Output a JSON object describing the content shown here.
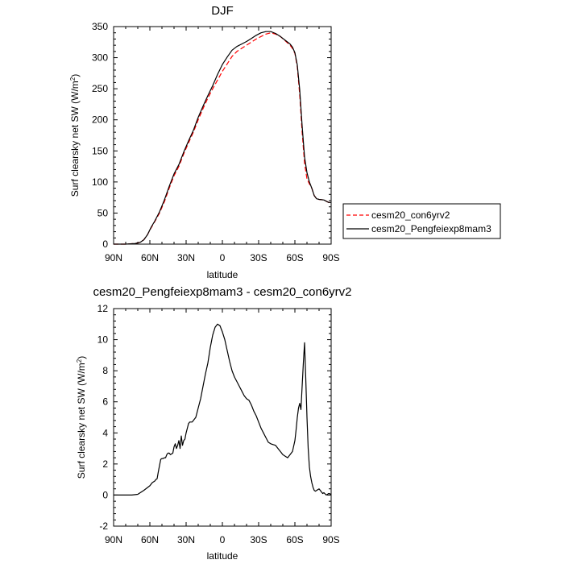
{
  "chart_data": [
    {
      "type": "line",
      "title": "DJF",
      "xlabel": "latitude",
      "ylabel": "Surf clearsky net SW (W/m",
      "ylabel_sup": "2",
      "ylabel_close": ")",
      "xlim": [
        -90,
        90
      ],
      "ylim": [
        0,
        350
      ],
      "xticks": [
        -90,
        -60,
        -30,
        0,
        30,
        60,
        90
      ],
      "xtick_labels": [
        "90N",
        "60N",
        "30N",
        "0",
        "30S",
        "60S",
        "90S"
      ],
      "yticks": [
        0,
        50,
        100,
        150,
        200,
        250,
        300,
        350
      ],
      "ytick_labels": [
        "0",
        "50",
        "100",
        "150",
        "200",
        "250",
        "300",
        "350"
      ],
      "grid": false,
      "legend": "right",
      "series": [
        {
          "name": "cesm20_con6yrv2",
          "color": "#ff0000",
          "dash": true,
          "x": [
            -90,
            -80,
            -72,
            -68,
            -65,
            -62,
            -59,
            -56,
            -52,
            -48,
            -44,
            -40,
            -36,
            -32,
            -28,
            -24,
            -20,
            -16,
            -12,
            -8,
            -4,
            0,
            4,
            8,
            12,
            16,
            20,
            24,
            28,
            32,
            36,
            40,
            44,
            48,
            52,
            56,
            58,
            60,
            62,
            64,
            66,
            68,
            70,
            72,
            74,
            76,
            78,
            80,
            84,
            88,
            90
          ],
          "y": [
            0,
            0,
            1,
            3,
            7,
            15,
            26,
            36,
            50,
            68,
            90,
            110,
            125,
            145,
            163,
            180,
            200,
            218,
            235,
            250,
            264,
            278,
            290,
            302,
            310,
            315,
            320,
            325,
            330,
            334,
            338,
            340,
            338,
            334,
            327,
            320,
            315,
            307,
            285,
            240,
            180,
            130,
            105,
            97,
            90,
            78,
            73,
            72,
            71,
            67,
            67
          ]
        },
        {
          "name": "cesm20_Pengfeiexp8mam3",
          "color": "#000000",
          "dash": false,
          "x": [
            -90,
            -80,
            -72,
            -68,
            -65,
            -62,
            -59,
            -56,
            -52,
            -48,
            -44,
            -40,
            -36,
            -32,
            -28,
            -24,
            -20,
            -16,
            -12,
            -8,
            -4,
            0,
            4,
            8,
            12,
            16,
            20,
            24,
            28,
            32,
            36,
            40,
            44,
            48,
            52,
            56,
            58,
            60,
            62,
            64,
            66,
            68,
            70,
            72,
            74,
            76,
            78,
            80,
            84,
            88,
            90
          ],
          "y": [
            0,
            0,
            1,
            3,
            7,
            15,
            27,
            37,
            52,
            71,
            93,
            113,
            128,
            148,
            166,
            183,
            204,
            222,
            239,
            255,
            273,
            289,
            301,
            312,
            318,
            322,
            326,
            331,
            336,
            340,
            342,
            342,
            339,
            334,
            328,
            322,
            317,
            308,
            288,
            248,
            190,
            140,
            115,
            100,
            90,
            78,
            73,
            72,
            71,
            67,
            67
          ]
        }
      ]
    },
    {
      "type": "line",
      "title": "cesm20_Pengfeiexp8mam3 - cesm20_con6yrv2",
      "xlabel": "latitude",
      "ylabel": "Surf clearsky net SW (W/m",
      "ylabel_sup": "2",
      "ylabel_close": ")",
      "xlim": [
        -90,
        90
      ],
      "ylim": [
        -2,
        12
      ],
      "xticks": [
        -90,
        -60,
        -30,
        0,
        30,
        60,
        90
      ],
      "xtick_labels": [
        "90N",
        "60N",
        "30N",
        "0",
        "30S",
        "60S",
        "90S"
      ],
      "yticks": [
        -2,
        0,
        2,
        4,
        6,
        8,
        10,
        12
      ],
      "ytick_labels": [
        "-2",
        "0",
        "2",
        "4",
        "6",
        "8",
        "10",
        "12"
      ],
      "grid": false,
      "series": [
        {
          "color": "#000000",
          "dash": false,
          "x": [
            -90,
            -75,
            -70,
            -65,
            -60,
            -58,
            -56,
            -55,
            -54,
            -53,
            -52,
            -51,
            -50,
            -49,
            -48,
            -47,
            -46,
            -45,
            -44,
            -43,
            -42,
            -41,
            -40,
            -39,
            -38,
            -37,
            -36,
            -35,
            -34,
            -33,
            -32,
            -31,
            -30,
            -29,
            -28,
            -27,
            -26,
            -25,
            -24,
            -22,
            -20,
            -18,
            -16,
            -14,
            -12,
            -10,
            -8,
            -6,
            -4,
            -3,
            -2,
            -1,
            0,
            2,
            4,
            6,
            8,
            10,
            12,
            14,
            16,
            18,
            20,
            22,
            24,
            26,
            28,
            30,
            32,
            34,
            36,
            38,
            40,
            42,
            44,
            46,
            48,
            50,
            52,
            54,
            56,
            58,
            60,
            61,
            62,
            63,
            64,
            65,
            66,
            67,
            68,
            69,
            70,
            71,
            72,
            73,
            74,
            75,
            76,
            77,
            78,
            79,
            80,
            81,
            82,
            83,
            84,
            86,
            88,
            90
          ],
          "y": [
            0,
            0,
            0.05,
            0.3,
            0.6,
            0.8,
            0.9,
            1.0,
            1.05,
            1.5,
            1.9,
            2.3,
            2.35,
            2.35,
            2.4,
            2.4,
            2.6,
            2.7,
            2.7,
            2.6,
            2.65,
            2.7,
            3.1,
            3.3,
            3.0,
            3.2,
            3.5,
            3.0,
            3.8,
            3.2,
            3.5,
            3.6,
            4.0,
            4.3,
            4.6,
            4.7,
            4.7,
            4.7,
            4.8,
            5.0,
            5.6,
            6.2,
            7.0,
            7.8,
            8.5,
            9.5,
            10.3,
            10.8,
            11.0,
            10.95,
            10.9,
            10.7,
            10.5,
            10.0,
            9.3,
            8.6,
            8.0,
            7.6,
            7.3,
            7.0,
            6.7,
            6.4,
            6.2,
            6.1,
            5.8,
            5.4,
            5.1,
            4.7,
            4.3,
            4.0,
            3.7,
            3.4,
            3.3,
            3.25,
            3.2,
            3.0,
            2.8,
            2.6,
            2.5,
            2.4,
            2.6,
            2.8,
            3.5,
            4.2,
            5.0,
            5.6,
            5.9,
            5.5,
            7.0,
            8.5,
            9.8,
            7.5,
            5.0,
            3.0,
            1.8,
            1.2,
            0.8,
            0.5,
            0.3,
            0.25,
            0.3,
            0.35,
            0.4,
            0.3,
            0.2,
            0.1,
            0.15,
            0.0,
            0.1,
            0.05
          ]
        }
      ]
    }
  ]
}
